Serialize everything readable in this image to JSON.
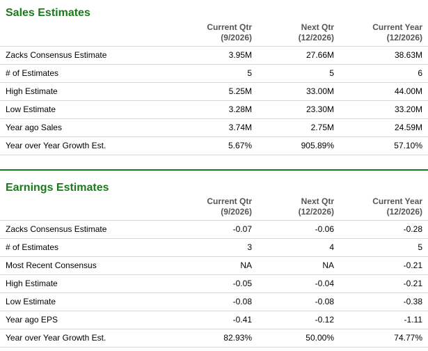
{
  "sales": {
    "title": "Sales Estimates",
    "columns": [
      {
        "line1": "Current Qtr",
        "line2": "(9/2026)"
      },
      {
        "line1": "Next Qtr",
        "line2": "(12/2026)"
      },
      {
        "line1": "Current Year",
        "line2": "(12/2026)"
      }
    ],
    "rows": [
      {
        "label": "Zacks Consensus Estimate",
        "values": [
          "3.95M",
          "27.66M",
          "38.63M"
        ]
      },
      {
        "label": "# of Estimates",
        "values": [
          "5",
          "5",
          "6"
        ]
      },
      {
        "label": "High Estimate",
        "values": [
          "5.25M",
          "33.00M",
          "44.00M"
        ]
      },
      {
        "label": "Low Estimate",
        "values": [
          "3.28M",
          "23.30M",
          "33.20M"
        ]
      },
      {
        "label": "Year ago Sales",
        "values": [
          "3.74M",
          "2.75M",
          "24.59M"
        ]
      },
      {
        "label": "Year over Year Growth Est.",
        "values": [
          "5.67%",
          "905.89%",
          "57.10%"
        ]
      }
    ]
  },
  "earnings": {
    "title": "Earnings Estimates",
    "columns": [
      {
        "line1": "Current Qtr",
        "line2": "(9/2026)"
      },
      {
        "line1": "Next Qtr",
        "line2": "(12/2026)"
      },
      {
        "line1": "Current Year",
        "line2": "(12/2026)"
      }
    ],
    "rows": [
      {
        "label": "Zacks Consensus Estimate",
        "values": [
          "-0.07",
          "-0.06",
          "-0.28"
        ]
      },
      {
        "label": "# of Estimates",
        "values": [
          "3",
          "4",
          "5"
        ]
      },
      {
        "label": "Most Recent Consensus",
        "values": [
          "NA",
          "NA",
          "-0.21"
        ]
      },
      {
        "label": "High Estimate",
        "values": [
          "-0.05",
          "-0.04",
          "-0.21"
        ]
      },
      {
        "label": "Low Estimate",
        "values": [
          "-0.08",
          "-0.08",
          "-0.38"
        ]
      },
      {
        "label": "Year ago EPS",
        "values": [
          "-0.41",
          "-0.12",
          "-1.11"
        ]
      },
      {
        "label": "Year over Year Growth Est.",
        "values": [
          "82.93%",
          "50.00%",
          "74.77%"
        ]
      }
    ]
  },
  "colors": {
    "title_green": "#1a7a1a",
    "header_gray": "#555555",
    "row_border": "#d9d9d9"
  }
}
